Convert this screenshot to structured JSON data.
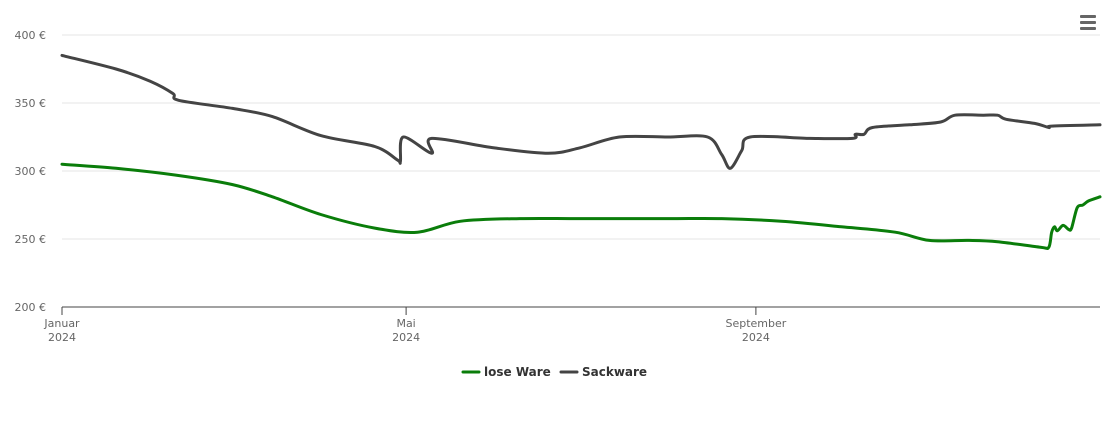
{
  "chart_data": {
    "type": "line",
    "title": "",
    "xlabel": "",
    "ylabel": "",
    "y_unit": "€",
    "ylim": [
      200,
      400
    ],
    "y_ticks": [
      {
        "value": 200,
        "label": "200 €"
      },
      {
        "value": 250,
        "label": "250 €"
      },
      {
        "value": 300,
        "label": "300 €"
      },
      {
        "value": 350,
        "label": "350 €"
      },
      {
        "value": 400,
        "label": "400 €"
      }
    ],
    "xlim": [
      "2024-01-01",
      "2024-12-31"
    ],
    "x_ticks": [
      {
        "date": "2024-01-01",
        "label": "Januar",
        "sublabel": "2024"
      },
      {
        "date": "2024-05-01",
        "label": "Mai",
        "sublabel": "2024"
      },
      {
        "date": "2024-09-01",
        "label": "September",
        "sublabel": "2024"
      }
    ],
    "grid": true,
    "legend": "bottom-center",
    "series": [
      {
        "name": "lose Ware",
        "color": "#0a7d0a",
        "points": [
          [
            "2024-01-01",
            305
          ],
          [
            "2024-01-20",
            302
          ],
          [
            "2024-02-10",
            297
          ],
          [
            "2024-03-01",
            290
          ],
          [
            "2024-03-15",
            281
          ],
          [
            "2024-04-01",
            268
          ],
          [
            "2024-04-20",
            258
          ],
          [
            "2024-05-05",
            255
          ],
          [
            "2024-05-20",
            263
          ],
          [
            "2024-06-10",
            265
          ],
          [
            "2024-07-01",
            265
          ],
          [
            "2024-08-01",
            265
          ],
          [
            "2024-08-20",
            265
          ],
          [
            "2024-09-10",
            263
          ],
          [
            "2024-10-01",
            259
          ],
          [
            "2024-10-20",
            255
          ],
          [
            "2024-11-01",
            249
          ],
          [
            "2024-11-15",
            249
          ],
          [
            "2024-11-25",
            248
          ],
          [
            "2024-12-10",
            244
          ],
          [
            "2024-12-13",
            244
          ],
          [
            "2024-12-14",
            255
          ],
          [
            "2024-12-15",
            259
          ],
          [
            "2024-12-16",
            256
          ],
          [
            "2024-12-18",
            260
          ],
          [
            "2024-12-20",
            257
          ],
          [
            "2024-12-21",
            258
          ],
          [
            "2024-12-23",
            273
          ],
          [
            "2024-12-25",
            275
          ],
          [
            "2024-12-27",
            278
          ],
          [
            "2024-12-31",
            281
          ]
        ]
      },
      {
        "name": "Sackware",
        "color": "#444444",
        "points": [
          [
            "2024-01-01",
            385
          ],
          [
            "2024-01-20",
            375
          ],
          [
            "2024-02-01",
            366
          ],
          [
            "2024-02-09",
            357
          ],
          [
            "2024-02-11",
            352
          ],
          [
            "2024-03-01",
            346
          ],
          [
            "2024-03-15",
            340
          ],
          [
            "2024-04-01",
            326
          ],
          [
            "2024-04-20",
            318
          ],
          [
            "2024-05-10",
            313
          ],
          [
            "2024-04-28",
            308
          ],
          [
            "2024-04-29",
            307
          ],
          [
            "2024-04-30",
            325
          ],
          [
            "2024-05-10",
            324
          ],
          [
            "2024-06-01",
            317
          ],
          [
            "2024-06-20",
            313
          ],
          [
            "2024-07-01",
            317
          ],
          [
            "2024-07-15",
            325
          ],
          [
            "2024-08-01",
            325
          ],
          [
            "2024-08-15",
            325
          ],
          [
            "2024-08-20",
            312
          ],
          [
            "2024-08-23",
            302
          ],
          [
            "2024-08-27",
            315
          ],
          [
            "2024-08-30",
            325
          ],
          [
            "2024-09-20",
            324
          ],
          [
            "2024-10-05",
            324
          ],
          [
            "2024-10-06",
            327
          ],
          [
            "2024-10-09",
            327
          ],
          [
            "2024-10-12",
            332
          ],
          [
            "2024-10-25",
            334
          ],
          [
            "2024-11-05",
            336
          ],
          [
            "2024-11-10",
            341
          ],
          [
            "2024-11-20",
            341
          ],
          [
            "2024-11-25",
            341
          ],
          [
            "2024-11-28",
            338
          ],
          [
            "2024-12-08",
            335
          ],
          [
            "2024-12-13",
            332
          ],
          [
            "2024-12-14",
            333
          ],
          [
            "2024-12-31",
            334
          ]
        ]
      }
    ]
  },
  "menu": {
    "icon": "hamburger-menu-icon"
  }
}
